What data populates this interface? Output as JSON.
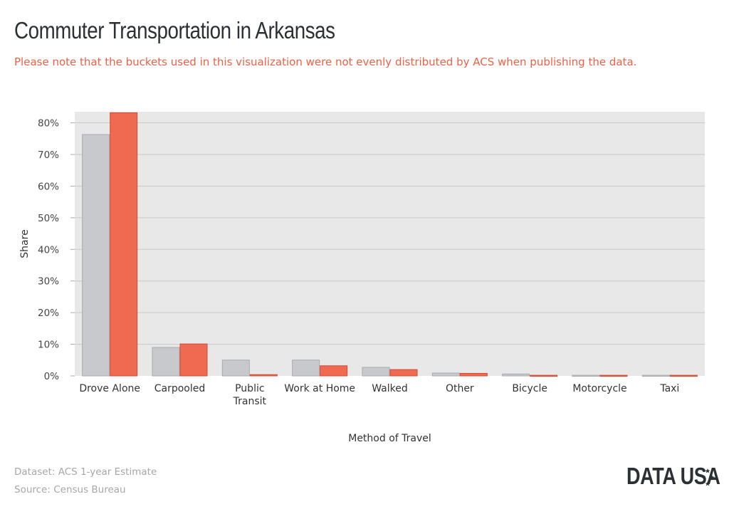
{
  "header": {
    "title": "Commuter Transportation in Arkansas",
    "note": "Please note that the buckets used in this visualization were not evenly distributed by ACS when publishing the data."
  },
  "footer": {
    "dataset": "Dataset: ACS 1-year Estimate",
    "source": "Source: Census Bureau",
    "logo": "DATA USA"
  },
  "colors": {
    "series_gray": "#c8c9cc",
    "series_red": "#ef6a50",
    "plot_bg": "#e8e8e8",
    "grid": "#c9c9c9",
    "note": "#ef6145"
  },
  "chart_data": {
    "type": "bar",
    "categories": [
      "Drove Alone",
      "Carpooled",
      "Public Transit",
      "Work at Home",
      "Walked",
      "Other",
      "Bicycle",
      "Motorcycle",
      "Taxi"
    ],
    "series": [
      {
        "values": [
          76.3,
          9.0,
          5.0,
          5.0,
          2.7,
          0.9,
          0.6,
          0.2,
          0.2
        ]
      },
      {
        "values": [
          83.2,
          10.1,
          0.4,
          3.2,
          2.0,
          0.8,
          0.2,
          0.2,
          0.2
        ]
      }
    ],
    "xlabel": "Method of Travel",
    "ylabel": "Share",
    "ylim": [
      0,
      83.5
    ],
    "yticks": [
      0,
      10,
      20,
      30,
      40,
      50,
      60,
      70,
      80
    ],
    "ytick_labels": [
      "0%",
      "10%",
      "20%",
      "30%",
      "40%",
      "50%",
      "60%",
      "70%",
      "80%"
    ],
    "grid": true,
    "legend": "none"
  }
}
